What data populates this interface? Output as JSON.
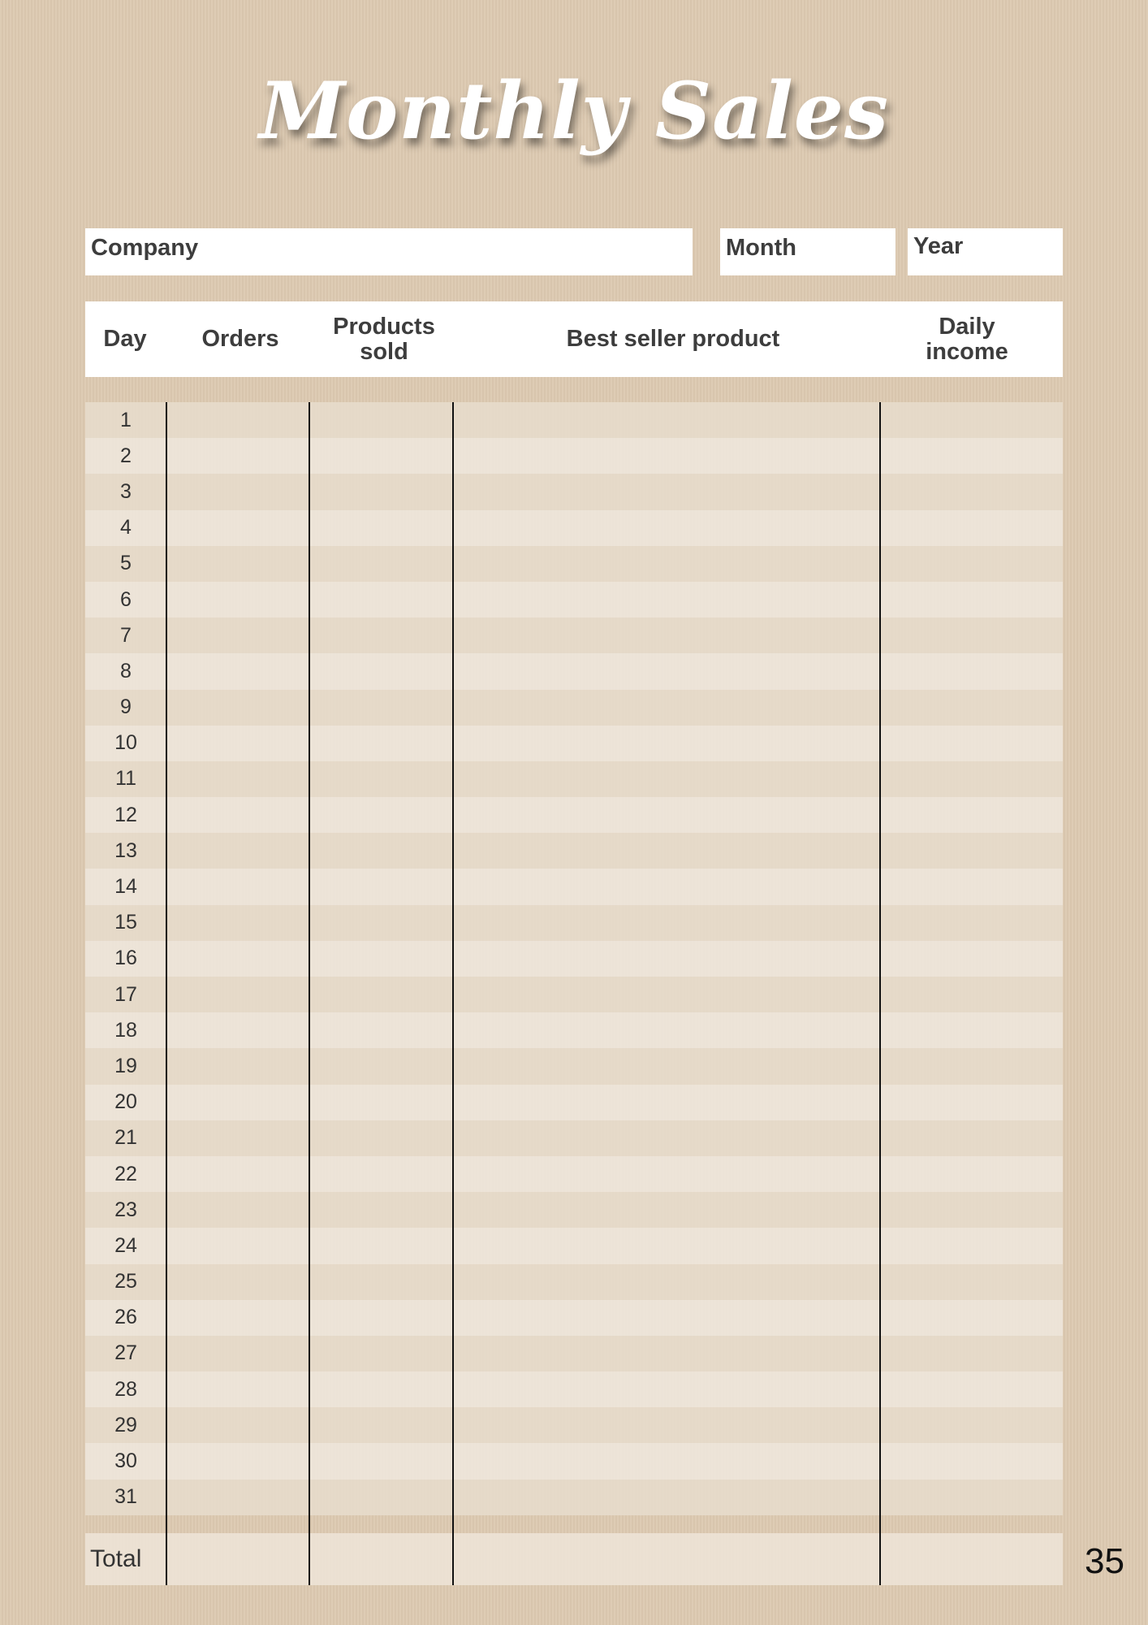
{
  "title": "Monthly Sales",
  "fields": {
    "company": "Company",
    "month": "Month",
    "year": "Year"
  },
  "columns": [
    "Day",
    "Orders",
    "Products sold",
    "Best seller product",
    "Daily income"
  ],
  "days": [
    "1",
    "2",
    "3",
    "4",
    "5",
    "6",
    "7",
    "8",
    "9",
    "10",
    "11",
    "12",
    "13",
    "14",
    "15",
    "16",
    "17",
    "18",
    "19",
    "20",
    "21",
    "22",
    "23",
    "24",
    "25",
    "26",
    "27",
    "28",
    "29",
    "30",
    "31"
  ],
  "total_label": "Total",
  "page_number": "35",
  "colors": {
    "background": "#dcc9b0",
    "row_dark": "#e8dccd",
    "row_light": "#f0e8de",
    "text": "#3d3d3d"
  }
}
